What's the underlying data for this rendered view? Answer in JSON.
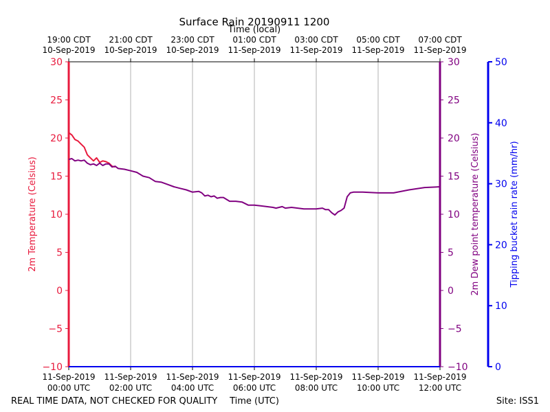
{
  "chart_data": {
    "type": "line",
    "title": "Surface Rain 20190911 1200",
    "top_axis_label": "Time (local)",
    "xlabel": "Time (UTC)",
    "ylabel_left": "2m Temperature (Celsius)",
    "ylabel_right_inner": "2m Dew point temperature (Celsius)",
    "ylabel_right_outer": "Tipping bucket rain rate (mm/hr)",
    "footer_left": "REAL TIME DATA, NOT CHECKED FOR QUALITY",
    "footer_right": "Site: ISS1",
    "xlim_hours": [
      0,
      12
    ],
    "ylim": [
      -10,
      30
    ],
    "rain_ylim": [
      0,
      50
    ],
    "grid": "vertical",
    "colors": {
      "temperature": "#e8193c",
      "dewpoint": "#800080",
      "rain": "#0000ee",
      "grid": "#b0b0b0"
    },
    "bottom_ticks": [
      {
        "x": 0,
        "line1": "11-Sep-2019",
        "line2": "00:00 UTC"
      },
      {
        "x": 2,
        "line1": "11-Sep-2019",
        "line2": "02:00 UTC"
      },
      {
        "x": 4,
        "line1": "11-Sep-2019",
        "line2": "04:00 UTC"
      },
      {
        "x": 6,
        "line1": "11-Sep-2019",
        "line2": "06:00 UTC"
      },
      {
        "x": 8,
        "line1": "11-Sep-2019",
        "line2": "08:00 UTC"
      },
      {
        "x": 10,
        "line1": "11-Sep-2019",
        "line2": "10:00 UTC"
      },
      {
        "x": 12,
        "line1": "11-Sep-2019",
        "line2": "12:00 UTC"
      }
    ],
    "top_ticks": [
      {
        "x": 0,
        "line1": "19:00 CDT",
        "line2": "10-Sep-2019"
      },
      {
        "x": 2,
        "line1": "21:00 CDT",
        "line2": "10-Sep-2019"
      },
      {
        "x": 4,
        "line1": "23:00 CDT",
        "line2": "10-Sep-2019"
      },
      {
        "x": 6,
        "line1": "01:00 CDT",
        "line2": "11-Sep-2019"
      },
      {
        "x": 8,
        "line1": "03:00 CDT",
        "line2": "11-Sep-2019"
      },
      {
        "x": 10,
        "line1": "05:00 CDT",
        "line2": "11-Sep-2019"
      },
      {
        "x": 12,
        "line1": "07:00 CDT",
        "line2": "11-Sep-2019"
      }
    ],
    "y_ticks": [
      -10,
      -5,
      0,
      5,
      10,
      15,
      20,
      25,
      30
    ],
    "y_tick_labels": [
      "−10",
      "−5",
      "0",
      "5",
      "10",
      "15",
      "20",
      "25",
      "30"
    ],
    "rain_ticks": [
      0,
      10,
      20,
      30,
      40,
      50
    ],
    "series": [
      {
        "name": "2m Temperature",
        "x": [
          0,
          0.1,
          0.2,
          0.3,
          0.4,
          0.5,
          0.6,
          0.7,
          0.8,
          0.9,
          1.0,
          1.1,
          1.2,
          1.3,
          1.4,
          1.5
        ],
        "values": [
          20.7,
          20.4,
          19.8,
          19.6,
          19.2,
          18.8,
          17.8,
          17.4,
          17.0,
          17.4,
          16.8,
          17.0,
          16.9,
          16.7,
          16.3,
          16.2
        ]
      },
      {
        "name": "2m Dew point temperature",
        "x": [
          0,
          0.1,
          0.2,
          0.3,
          0.4,
          0.5,
          0.6,
          0.7,
          0.8,
          0.9,
          1.0,
          1.1,
          1.2,
          1.3,
          1.4,
          1.5,
          1.6,
          1.8,
          2.0,
          2.2,
          2.4,
          2.6,
          2.8,
          3.0,
          3.2,
          3.4,
          3.6,
          3.8,
          4.0,
          4.2,
          4.3,
          4.4,
          4.5,
          4.6,
          4.7,
          4.8,
          4.9,
          5.0,
          5.2,
          5.4,
          5.6,
          5.8,
          6.0,
          6.2,
          6.4,
          6.6,
          6.7,
          6.8,
          6.9,
          7.0,
          7.2,
          7.4,
          7.6,
          7.8,
          8.0,
          8.2,
          8.3,
          8.4,
          8.5,
          8.6,
          8.7,
          8.8,
          8.9,
          9.0,
          9.1,
          9.2,
          9.3,
          9.5,
          10.0,
          10.5,
          11.0,
          11.5,
          12.0
        ],
        "values": [
          17.2,
          17.3,
          17.0,
          17.1,
          17.0,
          17.1,
          16.7,
          16.5,
          16.6,
          16.4,
          16.7,
          16.4,
          16.6,
          16.6,
          16.2,
          16.3,
          16.0,
          15.9,
          15.7,
          15.5,
          15.0,
          14.8,
          14.3,
          14.2,
          13.9,
          13.6,
          13.4,
          13.2,
          12.9,
          13.0,
          12.8,
          12.4,
          12.5,
          12.3,
          12.4,
          12.1,
          12.2,
          12.2,
          11.7,
          11.7,
          11.6,
          11.2,
          11.2,
          11.1,
          11.0,
          10.9,
          10.8,
          10.9,
          11.0,
          10.8,
          10.9,
          10.8,
          10.7,
          10.7,
          10.7,
          10.8,
          10.6,
          10.6,
          10.2,
          9.9,
          10.3,
          10.5,
          10.8,
          12.3,
          12.8,
          12.9,
          12.9,
          12.9,
          12.8,
          12.8,
          13.2,
          13.5,
          13.6
        ]
      }
    ]
  }
}
